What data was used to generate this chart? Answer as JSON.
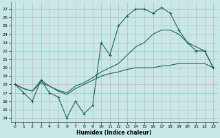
{
  "xlabel": "Humidex (Indice chaleur)",
  "background_color": "#c8e8e8",
  "grid_color": "#b8d8d8",
  "line_color": "#1a6060",
  "xlim": [
    -0.5,
    23.5
  ],
  "ylim": [
    13.5,
    27.8
  ],
  "yticks": [
    14,
    15,
    16,
    17,
    18,
    19,
    20,
    21,
    22,
    23,
    24,
    25,
    26,
    27
  ],
  "xticks": [
    0,
    1,
    2,
    3,
    4,
    5,
    6,
    7,
    8,
    9,
    10,
    11,
    12,
    13,
    14,
    15,
    16,
    17,
    18,
    19,
    20,
    21,
    22,
    23
  ],
  "series1": [
    18.0,
    17.0,
    16.0,
    18.5,
    17.0,
    16.5,
    14.0,
    16.0,
    14.5,
    15.5,
    23.0,
    21.5,
    25.0,
    26.2,
    27.0,
    27.0,
    26.5,
    27.2,
    26.5,
    24.5,
    23.0,
    22.0,
    22.0,
    20.0
  ],
  "series2": [
    18.0,
    17.5,
    17.2,
    18.2,
    17.8,
    17.2,
    16.8,
    17.5,
    18.0,
    18.5,
    19.0,
    19.3,
    19.5,
    19.8,
    20.0,
    20.0,
    20.0,
    20.2,
    20.3,
    20.5,
    20.5,
    20.5,
    20.5,
    20.0
  ],
  "series3": [
    18.0,
    17.5,
    17.2,
    18.5,
    17.8,
    17.3,
    17.0,
    17.8,
    18.2,
    18.8,
    19.5,
    20.0,
    20.5,
    21.5,
    22.5,
    23.0,
    24.0,
    24.5,
    24.5,
    24.0,
    23.0,
    22.5,
    22.0,
    20.0
  ]
}
